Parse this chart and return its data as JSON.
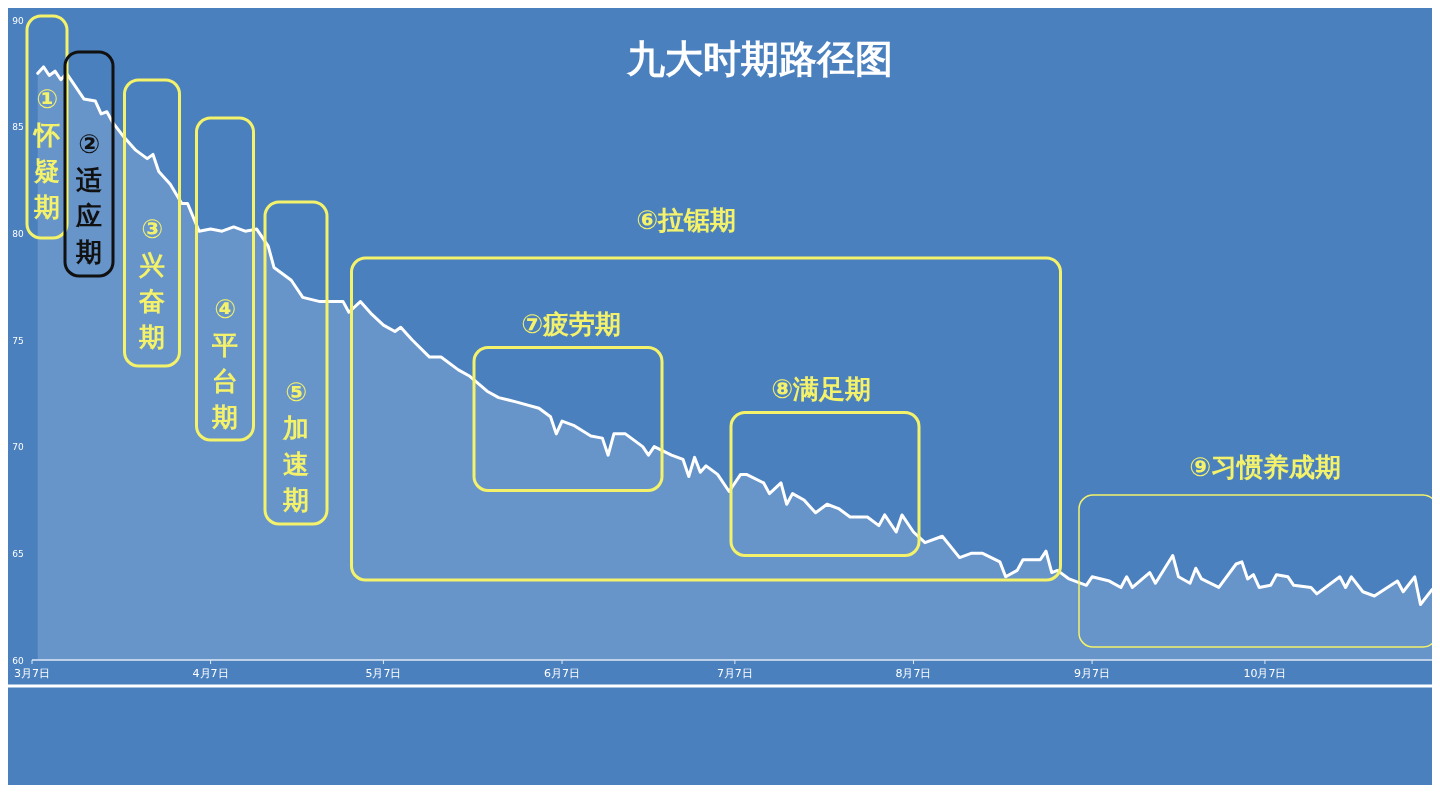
{
  "chart_data": {
    "type": "area",
    "title": "九大时期路径图",
    "x": [
      "--03-08",
      "--03-09",
      "--03-10",
      "--03-11",
      "--03-12",
      "--03-13",
      "--03-15",
      "--03-16",
      "--03-18",
      "--03-19",
      "--03-20",
      "--03-21",
      "--03-23",
      "--03-25",
      "--03-27",
      "--03-28",
      "--03-29",
      "--03-31",
      "--04-02",
      "--04-03",
      "--04-05",
      "--04-07",
      "--04-09",
      "--04-11",
      "--04-13",
      "--04-15",
      "--04-17",
      "--04-18",
      "--04-21",
      "--04-23",
      "--04-26",
      "--04-28",
      "--04-30",
      "--05-01",
      "--05-03",
      "--05-05",
      "--05-07",
      "--05-09",
      "--05-10",
      "--05-12",
      "--05-15",
      "--05-17",
      "--05-20",
      "--05-22",
      "--05-25",
      "--05-27",
      "--05-30",
      "--06-03",
      "--06-05",
      "--06-06",
      "--06-07",
      "--06-09",
      "--06-12",
      "--06-14",
      "--06-15",
      "--06-16",
      "--06-18",
      "--06-21",
      "--06-22",
      "--06-23",
      "--06-26",
      "--06-28",
      "--06-29",
      "--06-30",
      "--07-01",
      "--07-02",
      "--07-04",
      "--07-06",
      "--07-08",
      "--07-09",
      "--07-12",
      "--07-13",
      "--07-15",
      "--07-16",
      "--07-17",
      "--07-19",
      "--07-21",
      "--07-23",
      "--07-25",
      "--07-27",
      "--07-30",
      "--08-01",
      "--08-02",
      "--08-04",
      "--08-05",
      "--08-07",
      "--08-09",
      "--08-12",
      "--08-15",
      "--08-17",
      "--08-19",
      "--08-22",
      "--08-23",
      "--08-25",
      "--08-26",
      "--08-29",
      "--08-30",
      "--08-31",
      "--09-01",
      "--09-03",
      "--09-06",
      "--09-07",
      "--09-10",
      "--09-12",
      "--09-13",
      "--09-14",
      "--09-17",
      "--09-18",
      "--09-21",
      "--09-22",
      "--09-24",
      "--09-25",
      "--09-26",
      "--09-29",
      "--10-02",
      "--10-03",
      "--10-04",
      "--10-05",
      "--10-06",
      "--10-08",
      "--10-09",
      "--10-11",
      "--10-12",
      "--10-15",
      "--10-16",
      "--10-20",
      "--10-21",
      "--10-22",
      "--10-24",
      "--10-26",
      "--10-30",
      "--10-31",
      "--11-02",
      "--11-03",
      "--11-05"
    ],
    "series": [
      {
        "color": "#ffffff",
        "values": [
          87.5,
          87.8,
          87.4,
          87.6,
          87.2,
          87.5,
          86.7,
          86.3,
          86.2,
          85.6,
          85.7,
          85.2,
          84.5,
          83.9,
          83.5,
          83.7,
          82.9,
          82.3,
          81.4,
          81.4,
          80.1,
          80.2,
          80.1,
          80.3,
          80.1,
          80.2,
          79.4,
          78.4,
          77.8,
          77.0,
          76.8,
          76.8,
          76.8,
          76.3,
          76.8,
          76.2,
          75.7,
          75.4,
          75.6,
          75.0,
          74.2,
          74.2,
          73.6,
          73.3,
          72.6,
          72.3,
          72.1,
          71.8,
          71.4,
          70.6,
          71.2,
          71.0,
          70.5,
          70.4,
          69.6,
          70.6,
          70.6,
          70.0,
          69.6,
          70.0,
          69.6,
          69.4,
          68.6,
          69.5,
          68.8,
          69.1,
          68.7,
          67.9,
          68.7,
          68.7,
          68.3,
          67.8,
          68.3,
          67.3,
          67.8,
          67.5,
          66.9,
          67.3,
          67.1,
          66.7,
          66.7,
          66.3,
          66.8,
          66.0,
          66.8,
          66.0,
          65.5,
          65.8,
          64.8,
          65.0,
          65.0,
          64.6,
          63.9,
          64.2,
          64.7,
          64.7,
          65.1,
          64.1,
          64.2,
          63.8,
          63.5,
          63.9,
          63.7,
          63.4,
          63.9,
          63.4,
          64.1,
          63.6,
          64.9,
          63.9,
          63.6,
          64.3,
          63.8,
          63.4,
          64.5,
          64.6,
          63.8,
          64.0,
          63.4,
          63.5,
          64.0,
          63.9,
          63.5,
          63.4,
          63.1,
          63.9,
          63.4,
          63.9,
          63.2,
          63.0,
          63.7,
          63.2,
          63.9,
          62.6,
          63.3
        ]
      }
    ],
    "xlim": [
      "--03-07",
      "--11-05"
    ],
    "xticks": [
      {
        "value": "--03-07",
        "label": "3月7日"
      },
      {
        "value": "--04-07",
        "label": "4月7日"
      },
      {
        "value": "--05-07",
        "label": "5月7日"
      },
      {
        "value": "--06-07",
        "label": "6月7日"
      },
      {
        "value": "--07-07",
        "label": "7月7日"
      },
      {
        "value": "--08-07",
        "label": "8月7日"
      },
      {
        "value": "--09-07",
        "label": "9月7日"
      },
      {
        "value": "--10-07",
        "label": "10月7日"
      }
    ],
    "ylim": [
      60,
      90
    ],
    "yticks": [
      60,
      65,
      70,
      75,
      80,
      85,
      90
    ],
    "annotations": [
      "①怀疑期",
      "②适应期",
      "③兴奋期",
      "④平台期",
      "⑤加速期",
      "⑥拉锯期",
      "⑦疲劳期",
      "⑧满足期",
      "⑨习惯养成期"
    ]
  }
}
